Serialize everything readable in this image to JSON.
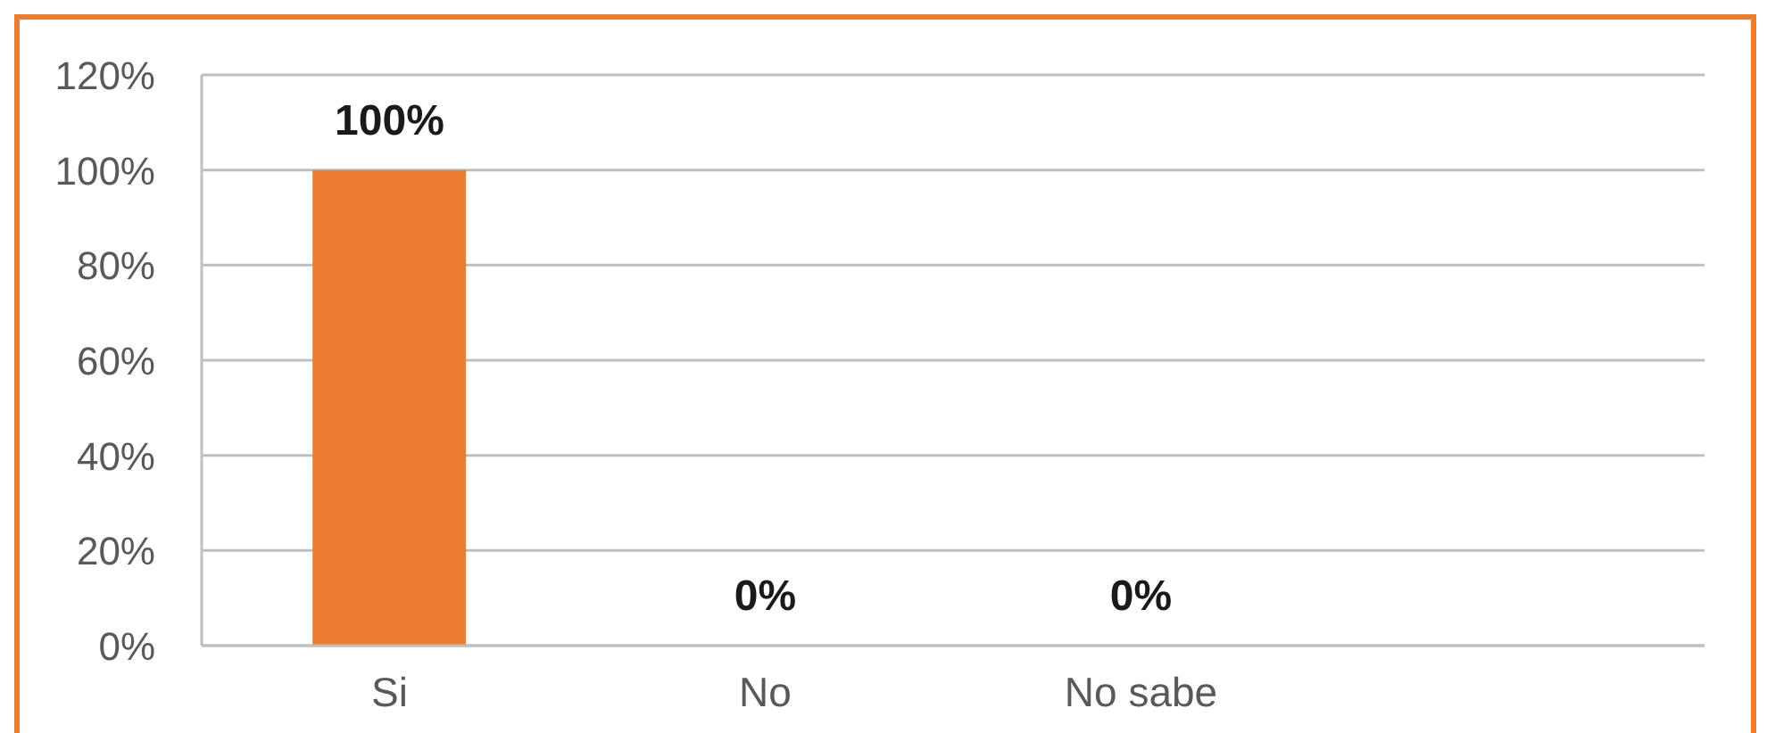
{
  "chart_data": {
    "type": "bar",
    "categories": [
      "Si",
      "No",
      "No sabe",
      null
    ],
    "values": [
      100,
      0,
      0,
      null
    ],
    "color": "#ed7d31",
    "value_labels": [
      "100%",
      "0%",
      "0%",
      null
    ],
    "ylim": [
      0,
      120
    ],
    "yticks": [
      {
        "value": 0,
        "label": "0%"
      },
      {
        "value": 20,
        "label": "20%"
      },
      {
        "value": 40,
        "label": "40%"
      },
      {
        "value": 60,
        "label": "60%"
      },
      {
        "value": 80,
        "label": "80%"
      },
      {
        "value": 100,
        "label": "100%"
      },
      {
        "value": 120,
        "label": "120%"
      }
    ],
    "grid": "y"
  }
}
